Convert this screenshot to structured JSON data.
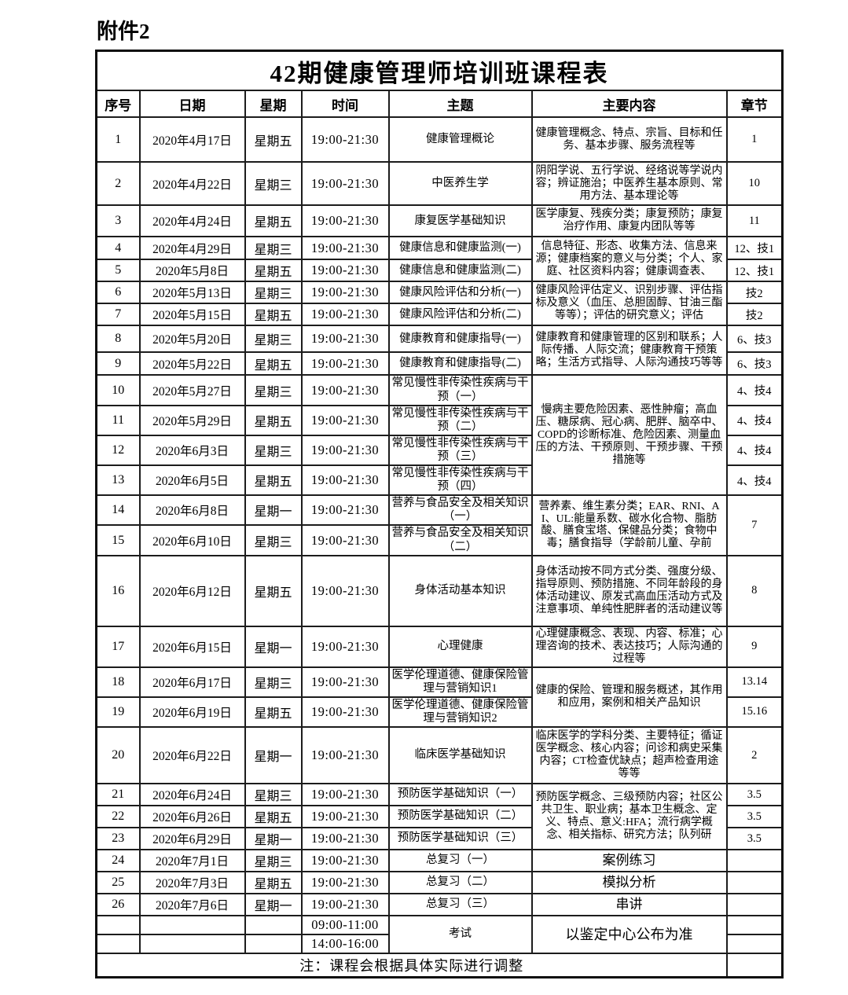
{
  "doc": {
    "attachment_label": "附件2"
  },
  "table": {
    "title": "42期健康管理师培训班课程表",
    "headers": [
      "序号",
      "日期",
      "星期",
      "时间",
      "主题",
      "主要内容",
      "章节"
    ],
    "rows": [
      {
        "no": "1",
        "date": "2020年4月17日",
        "weekday": "星期五",
        "time": "19:00-21:30",
        "topic": "健康管理概论",
        "content": "健康管理概念、特点、宗旨、目标和任务、基本步骤、服务流程等",
        "chapter": "1"
      },
      {
        "no": "2",
        "date": "2020年4月22日",
        "weekday": "星期三",
        "time": "19:00-21:30",
        "topic": "中医养生学",
        "content": "阴阳学说、五行学说、经络说等学说内容；辨证施治；中医养生基本原则、常用方法、基本理论等",
        "chapter": "10"
      },
      {
        "no": "3",
        "date": "2020年4月24日",
        "weekday": "星期五",
        "time": "19:00-21:30",
        "topic": "康复医学基础知识",
        "content": "医学康复、残疾分类；康复预防；康复治疗作用、康复内团队等等",
        "chapter": "11"
      },
      {
        "no": "4",
        "date": "2020年4月29日",
        "weekday": "星期三",
        "time": "19:00-21:30",
        "topic": "健康信息和健康监测(一)",
        "content": "信息特征、形态、收集方法、信息来源；健康档案的意义与分类；个人、家庭、社区资料内容；健康调查表、",
        "chapter": "12、技1"
      },
      {
        "no": "5",
        "date": "2020年5月8日",
        "weekday": "星期五",
        "time": "19:00-21:30",
        "topic": "健康信息和健康监测(二)",
        "chapter": "12、技1"
      },
      {
        "no": "6",
        "date": "2020年5月13日",
        "weekday": "星期三",
        "time": "19:00-21:30",
        "topic": "健康风险评估和分析(一)",
        "content": "健康风险评估定义、识别步骤、评估指标及意义（血压、总胆固醇、甘油三酯等等）；评估的研究意义；评估",
        "chapter": "技2"
      },
      {
        "no": "7",
        "date": "2020年5月15日",
        "weekday": "星期五",
        "time": "19:00-21:30",
        "topic": "健康风险评估和分析(二)",
        "chapter": "技2"
      },
      {
        "no": "8",
        "date": "2020年5月20日",
        "weekday": "星期三",
        "time": "19:00-21:30",
        "topic": "健康教育和健康指导(一)",
        "content": "健康教育和健康管理的区别和联系；人际传播、人际交流；健康教育干预策略；生活方式指导、人际沟通技巧等等",
        "chapter": "6、技3"
      },
      {
        "no": "9",
        "date": "2020年5月22日",
        "weekday": "星期五",
        "time": "19:00-21:30",
        "topic": "健康教育和健康指导(二)",
        "chapter": "6、技3"
      },
      {
        "no": "10",
        "date": "2020年5月27日",
        "weekday": "星期三",
        "time": "19:00-21:30",
        "topic": "常见慢性非传染性疾病与干预（一）",
        "content": "慢病主要危险因素、恶性肿瘤；高血压、糖尿病、冠心病、肥胖、脑卒中、COPD的诊断标准、危险因素、测量血压的方法、干预原则、干预步骤、干预措施等",
        "chapter": "4、技4"
      },
      {
        "no": "11",
        "date": "2020年5月29日",
        "weekday": "星期五",
        "time": "19:00-21:30",
        "topic": "常见慢性非传染性疾病与干预（二）",
        "chapter": "4、技4"
      },
      {
        "no": "12",
        "date": "2020年6月3日",
        "weekday": "星期三",
        "time": "19:00-21:30",
        "topic": "常见慢性非传染性疾病与干预（三）",
        "chapter": "4、技4"
      },
      {
        "no": "13",
        "date": "2020年6月5日",
        "weekday": "星期五",
        "time": "19:00-21:30",
        "topic": "常见慢性非传染性疾病与干预（四）",
        "chapter": "4、技4"
      },
      {
        "no": "14",
        "date": "2020年6月8日",
        "weekday": "星期一",
        "time": "19:00-21:30",
        "topic": "营养与食品安全及相关知识（一）",
        "content": "营养素、维生素分类；EAR、RNI、AI、UL:能量系数、碳水化合物、脂肪酸、膳食宝塔、保健品分类；食物中毒；膳食指导（学龄前儿童、孕前",
        "chapter": "7"
      },
      {
        "no": "15",
        "date": "2020年6月10日",
        "weekday": "星期三",
        "time": "19:00-21:30",
        "topic": "营养与食品安全及相关知识（二）"
      },
      {
        "no": "16",
        "date": "2020年6月12日",
        "weekday": "星期五",
        "time": "19:00-21:30",
        "topic": "身体活动基本知识",
        "content": "身体活动按不同方式分类、强度分级、指导原则、预防措施、不同年龄段的身体活动建议、原发式高血压活动方式及注意事项、单纯性肥胖者的活动建议等",
        "chapter": "8"
      },
      {
        "no": "17",
        "date": "2020年6月15日",
        "weekday": "星期一",
        "time": "19:00-21:30",
        "topic": "心理健康",
        "content": "心理健康概念、表现、内容、标准；心理咨询的技术、表达技巧；人际沟通的过程等",
        "chapter": "9"
      },
      {
        "no": "18",
        "date": "2020年6月17日",
        "weekday": "星期三",
        "time": "19:00-21:30",
        "topic": "医学伦理道德、健康保险管理与营销知识1",
        "content": "健康的保险、管理和服务概述，其作用和应用，案例和相关产品知识",
        "chapter": "13.14"
      },
      {
        "no": "19",
        "date": "2020年6月19日",
        "weekday": "星期五",
        "time": "19:00-21:30",
        "topic": "医学伦理道德、健康保险管理与营销知识2",
        "chapter": "15.16"
      },
      {
        "no": "20",
        "date": "2020年6月22日",
        "weekday": "星期一",
        "time": "19:00-21:30",
        "topic": "临床医学基础知识",
        "content": "临床医学的学科分类、主要特征；循证医学概念、核心内容；问诊和病史采集内容；CT检查优缺点；超声检查用途等等",
        "chapter": "2"
      },
      {
        "no": "21",
        "date": "2020年6月24日",
        "weekday": "星期三",
        "time": "19:00-21:30",
        "topic": "预防医学基础知识（一）",
        "content": "预防医学概念、三级预防内容；社区公共卫生、职业病；基本卫生概念、定义、特点、意义:HFA；流行病学概念、相关指标、研究方法；队列研",
        "chapter": "3.5"
      },
      {
        "no": "22",
        "date": "2020年6月26日",
        "weekday": "星期五",
        "time": "19:00-21:30",
        "topic": "预防医学基础知识（二）",
        "chapter": "3.5"
      },
      {
        "no": "23",
        "date": "2020年6月29日",
        "weekday": "星期一",
        "time": "19:00-21:30",
        "topic": "预防医学基础知识（三）",
        "chapter": "3.5"
      },
      {
        "no": "24",
        "date": "2020年7月1日",
        "weekday": "星期三",
        "time": "19:00-21:30",
        "topic": "总复习（一）",
        "content": "案例练习",
        "chapter": ""
      },
      {
        "no": "25",
        "date": "2020年7月3日",
        "weekday": "星期五",
        "time": "19:00-21:30",
        "topic": "总复习（二）",
        "content": "模拟分析",
        "chapter": ""
      },
      {
        "no": "26",
        "date": "2020年7月6日",
        "weekday": "星期一",
        "time": "19:00-21:30",
        "topic": "总复习（三）",
        "content": "串讲",
        "chapter": ""
      }
    ]
  },
  "exam": {
    "time_morning": "09:00-11:00",
    "time_afternoon": "14:00-16:00",
    "topic": "考试",
    "content": "以鉴定中心公布为准"
  },
  "note": "注：课程会根据具体实际进行调整"
}
